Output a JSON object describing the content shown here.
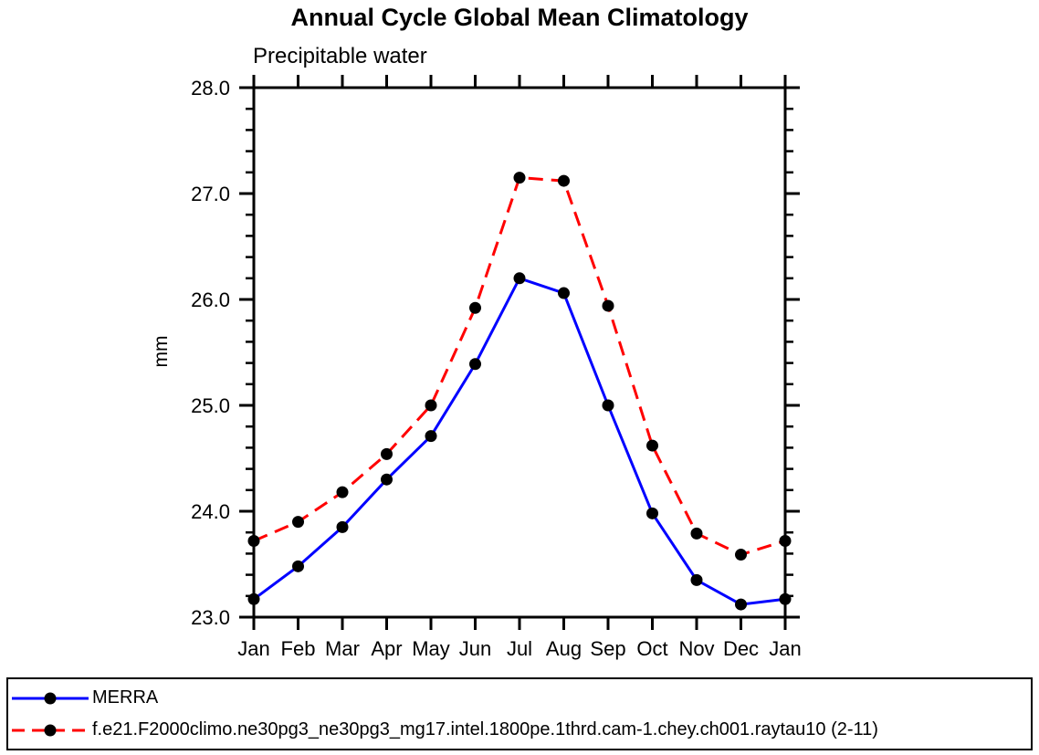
{
  "title": "Annual Cycle Global Mean Climatology",
  "subtitle": "Precipitable water",
  "ylabel": "mm",
  "colors": {
    "merra_line": "#0000ff",
    "model_line": "#ff0000",
    "marker": "#000000",
    "axis": "#000000"
  },
  "chart_data": {
    "type": "line",
    "title": "Annual Cycle Global Mean Climatology",
    "subtitle": "Precipitable water",
    "ylabel": "mm",
    "xlabel": "",
    "x": [
      "Jan",
      "Feb",
      "Mar",
      "Apr",
      "May",
      "Jun",
      "Jul",
      "Aug",
      "Sep",
      "Oct",
      "Nov",
      "Dec",
      "Jan"
    ],
    "ylim": [
      23.0,
      28.0
    ],
    "ytick_major": 1.0,
    "ytick_minor": 0.2,
    "ytick_labels": [
      "23.0",
      "24.0",
      "25.0",
      "26.0",
      "27.0",
      "28.0"
    ],
    "grid": false,
    "legend_position": "bottom-outside-boxed",
    "series": [
      {
        "name": "MERRA",
        "color": "#0000ff",
        "style": "solid",
        "marker": "filled-circle",
        "marker_color": "#000000",
        "values": [
          23.17,
          23.48,
          23.85,
          24.3,
          24.71,
          25.39,
          26.2,
          26.06,
          25.0,
          23.98,
          23.35,
          23.12,
          23.17
        ]
      },
      {
        "name": "f.e21.F2000climo.ne30pg3_ne30pg3_mg17.intel.1800pe.1thrd.cam-1.chey.ch001.raytau10 (2-11)",
        "color": "#ff0000",
        "style": "dashed",
        "marker": "filled-circle",
        "marker_color": "#000000",
        "values": [
          23.72,
          23.9,
          24.18,
          24.54,
          25.0,
          25.92,
          27.15,
          27.12,
          25.94,
          24.62,
          23.79,
          23.59,
          23.72
        ]
      }
    ]
  }
}
